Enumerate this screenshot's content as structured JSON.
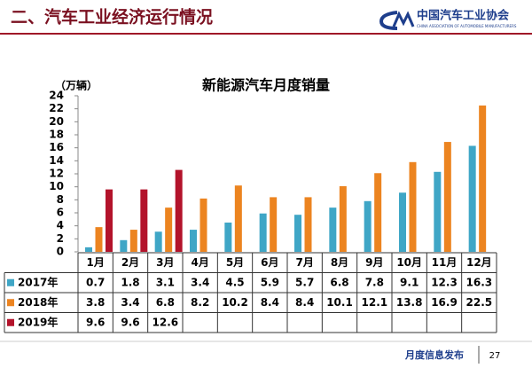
{
  "header": {
    "title": "二、汽车工业经济运行情况",
    "logo_cn": "中国汽车工业协会",
    "logo_en": "CHINA ASSOCIATION OF AUTOMOBILE MANUFACTURERS"
  },
  "footer": {
    "text": "月度信息发布",
    "page": "27"
  },
  "chart_data": {
    "type": "bar",
    "title": "新能源汽车月度销量",
    "y_label": "（万辆）",
    "categories": [
      "1月",
      "2月",
      "3月",
      "4月",
      "5月",
      "6月",
      "7月",
      "8月",
      "9月",
      "10月",
      "11月",
      "12月"
    ],
    "series": [
      {
        "name": "2017年",
        "color": "#3fa6c6",
        "values": [
          0.7,
          1.8,
          3.1,
          3.4,
          4.5,
          5.9,
          5.7,
          6.8,
          7.8,
          9.1,
          12.3,
          16.3
        ]
      },
      {
        "name": "2018年",
        "color": "#ec8420",
        "values": [
          3.8,
          3.4,
          6.8,
          8.2,
          10.2,
          8.4,
          8.4,
          10.1,
          12.1,
          13.8,
          16.9,
          22.5
        ]
      },
      {
        "name": "2019年",
        "color": "#b3132b",
        "values": [
          9.6,
          9.6,
          12.6,
          null,
          null,
          null,
          null,
          null,
          null,
          null,
          null,
          null
        ]
      }
    ],
    "ylim": [
      0,
      24
    ],
    "yticks": [
      0,
      2,
      4,
      6,
      8,
      10,
      12,
      14,
      16,
      18,
      20,
      22,
      24
    ],
    "grid": false
  }
}
